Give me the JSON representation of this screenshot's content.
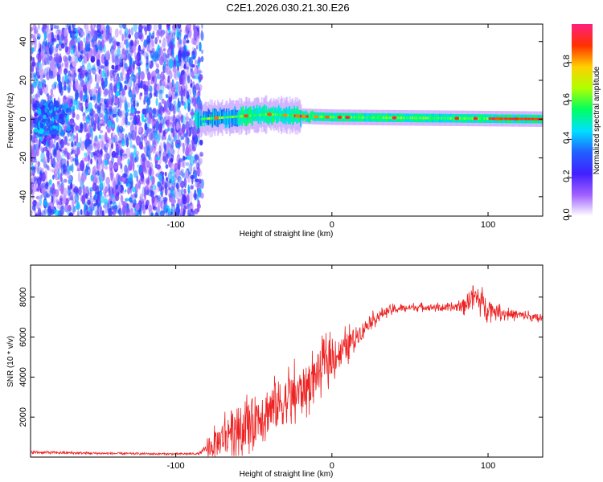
{
  "title": "C2E1.2026.030.21.30.E26",
  "chart_data": [
    {
      "type": "heatmap",
      "xlabel": "Height of straight line (km)",
      "ylabel": "Frequency (Hz)",
      "xlim": [
        -193,
        135
      ],
      "ylim": [
        -50,
        49
      ],
      "xticks": [
        -100,
        0,
        100
      ],
      "yticks": [
        -40,
        -20,
        0,
        20,
        40
      ],
      "colorbar": {
        "label": "Normalized spectral amplitude",
        "range": [
          0,
          1
        ],
        "ticks": [
          0.0,
          0.2,
          0.4,
          0.6,
          0.8
        ],
        "tick_labels": [
          "0.0",
          "0.2",
          "0.4",
          "0.6",
          "0.8"
        ],
        "colors": [
          "#ffffff",
          "#a060ff",
          "#4020ff",
          "#2060ff",
          "#00e0ff",
          "#00ff60",
          "#b0ff00",
          "#ffd000",
          "#ff3000",
          "#ff2080"
        ]
      },
      "features": {
        "scatter_region_km": [
          -193,
          -85
        ],
        "ridge_start_km": -88,
        "ridge_frequency_hz": [
          {
            "x": -85,
            "y": 0
          },
          {
            "x": -40,
            "y": 2.5
          },
          {
            "x": -20,
            "y": 1.5
          },
          {
            "x": 0,
            "y": 1
          },
          {
            "x": 135,
            "y": 0
          }
        ]
      }
    },
    {
      "type": "line",
      "xlabel": "Height of straight line (km)",
      "ylabel": "SNR (10 * v/v)",
      "xlim": [
        -193,
        135
      ],
      "ylim": [
        0,
        9600
      ],
      "xticks": [
        -100,
        0,
        100
      ],
      "yticks": [
        2000,
        4000,
        6000,
        8000
      ],
      "color": "#ee2222",
      "series": [
        {
          "name": "SNR",
          "x": [
            -193,
            -150,
            -100,
            -85,
            -75,
            -65,
            -55,
            -45,
            -35,
            -25,
            -15,
            -5,
            5,
            15,
            25,
            35,
            45,
            55,
            65,
            75,
            85,
            90,
            95,
            100,
            105,
            110,
            120,
            135
          ],
          "y": [
            220,
            170,
            140,
            160,
            600,
            1400,
            1600,
            2200,
            2600,
            3000,
            3600,
            4700,
            5200,
            6000,
            6800,
            7300,
            7450,
            7500,
            7500,
            7450,
            7600,
            8100,
            7800,
            7500,
            7300,
            7200,
            7100,
            6900
          ],
          "noise": [
            150,
            120,
            100,
            100,
            800,
            1200,
            1300,
            1500,
            1500,
            1400,
            1200,
            1100,
            900,
            600,
            350,
            250,
            200,
            180,
            180,
            200,
            400,
            700,
            600,
            600,
            350,
            300,
            250,
            250
          ]
        }
      ]
    }
  ]
}
